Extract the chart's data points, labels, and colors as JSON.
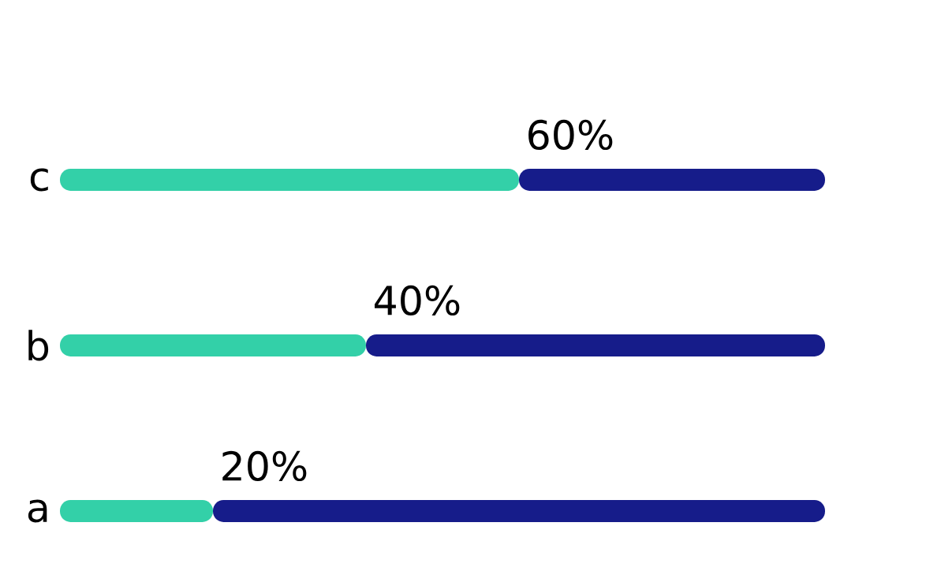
{
  "chart_data": {
    "type": "bar",
    "orientation": "horizontal",
    "stacked": true,
    "categories": [
      "c",
      "b",
      "a"
    ],
    "series": [
      {
        "color": "#33d0a8",
        "values": [
          60,
          40,
          20
        ],
        "value_labels": [
          "60%",
          "40%",
          "20%"
        ]
      },
      {
        "color": "#161c8a",
        "values": [
          40,
          60,
          80
        ]
      }
    ],
    "xlim": [
      0,
      100
    ],
    "tick_labels": "y"
  }
}
